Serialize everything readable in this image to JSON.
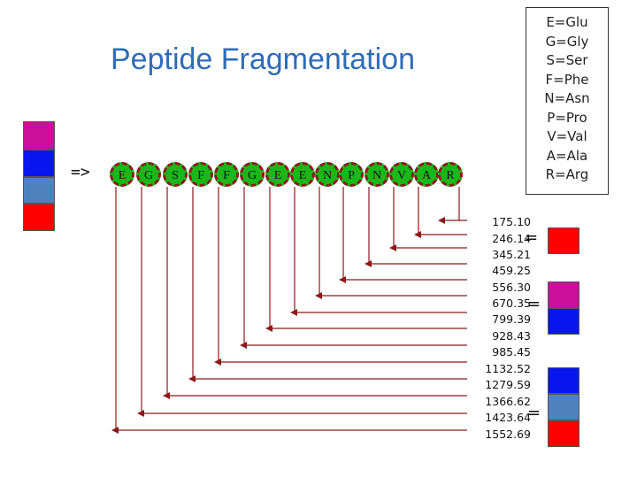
{
  "title": "Peptide Fragmentation",
  "arrow_label": "=>",
  "sequence": [
    "E",
    "G",
    "S",
    "F",
    "F",
    "G",
    "E",
    "E",
    "N",
    "P",
    "N",
    "V",
    "A",
    "R"
  ],
  "legend": [
    "E=Glu",
    "G=Gly",
    "S=Ser",
    "F=Phe",
    "N=Asn",
    "P=Pro",
    "V=Val",
    "A=Ala",
    "R=Arg"
  ],
  "masses": [
    "175.10",
    "246.14",
    "345.21",
    "459.25",
    "556.30",
    "670.35",
    "799.39",
    "928.43",
    "985.45",
    "1132.52",
    "1279.59",
    "1366.62",
    "1423.64",
    "1552.69"
  ],
  "equals": "=",
  "colors": {
    "magenta": "#cc0f99",
    "blue": "#0a16f0",
    "steel_blue": "#4f81bd",
    "red": "#ff0000",
    "residue_fill": "#19b71a",
    "residue_border": "#8b1a1a",
    "line": "#8b1a1a",
    "title": "#2e6cb8"
  }
}
